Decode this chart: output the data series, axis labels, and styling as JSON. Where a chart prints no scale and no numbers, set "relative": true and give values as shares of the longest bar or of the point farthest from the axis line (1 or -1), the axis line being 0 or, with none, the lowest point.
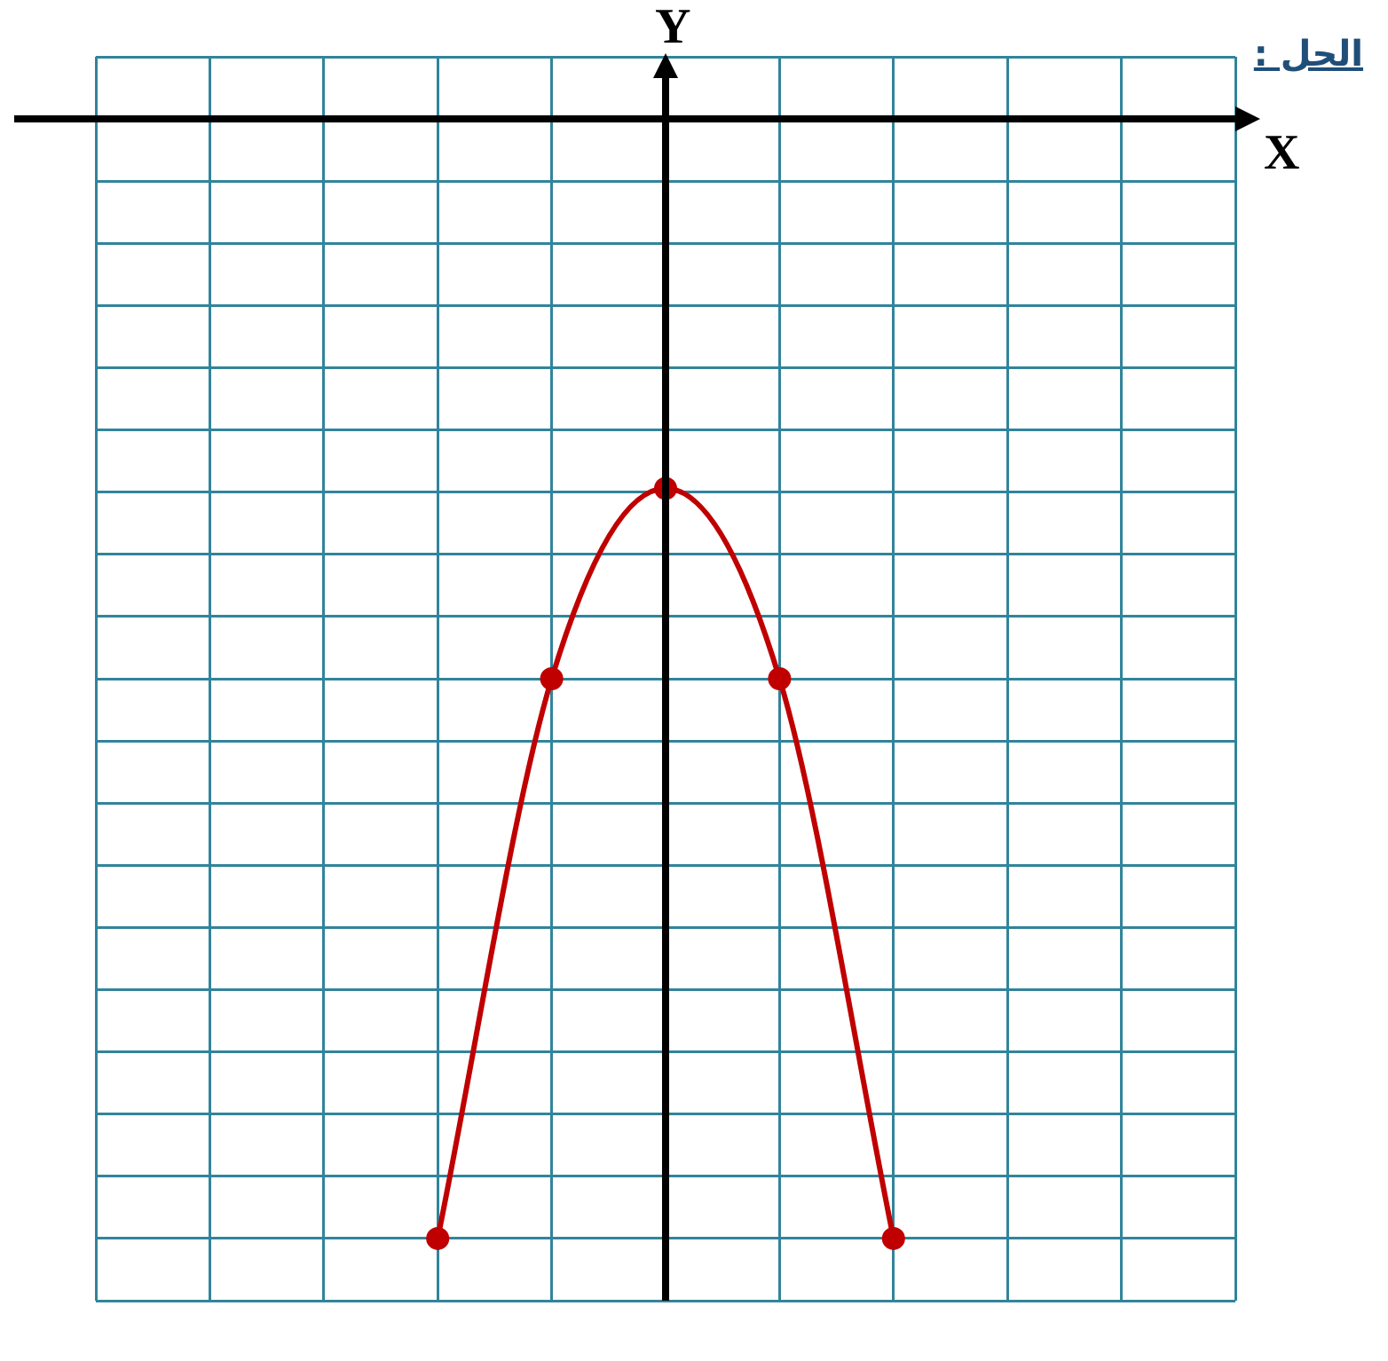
{
  "chart_data": {
    "type": "line",
    "title": "الحل :",
    "xlabel": "X",
    "ylabel": "Y",
    "relative": true,
    "grid": true,
    "marker": "circle",
    "line_style": "solid",
    "categories": [
      null,
      null,
      null,
      null,
      null,
      null,
      null,
      null,
      null,
      null,
      null
    ],
    "series": [
      {
        "color": "#c00000",
        "values": [
          null,
          null,
          null,
          -1,
          -0.5,
          -0.33,
          -0.5,
          -1,
          null,
          null,
          null
        ]
      }
    ]
  }
}
